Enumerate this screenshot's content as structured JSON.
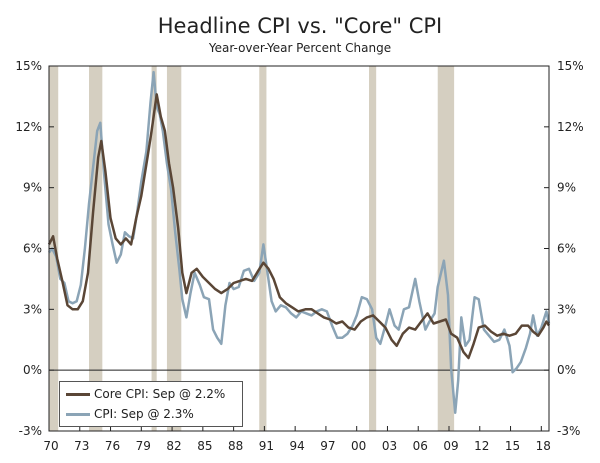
{
  "chart_data": {
    "type": "line",
    "title": "Headline CPI vs. \"Core\" CPI",
    "subtitle": "Year-over-Year Percent Change",
    "xlim": [
      1970,
      2018.75
    ],
    "ylim": [
      -3,
      15
    ],
    "y_ticks": [
      -3,
      0,
      3,
      6,
      9,
      12,
      15
    ],
    "y_tick_labels": [
      "-3%",
      "0%",
      "3%",
      "6%",
      "9%",
      "12%",
      "15%"
    ],
    "x_ticks": [
      1970,
      1973,
      1976,
      1979,
      1982,
      1985,
      1988,
      1991,
      1994,
      1997,
      2000,
      2003,
      2006,
      2009,
      2012,
      2015,
      2018
    ],
    "x_tick_labels": [
      "70",
      "73",
      "76",
      "79",
      "82",
      "85",
      "88",
      "91",
      "94",
      "97",
      "00",
      "03",
      "06",
      "09",
      "12",
      "15",
      "18"
    ],
    "recessions": [
      [
        1970.0,
        1970.9
      ],
      [
        1973.9,
        1975.2
      ],
      [
        1980.0,
        1980.5
      ],
      [
        1981.5,
        1982.9
      ],
      [
        1990.5,
        1991.2
      ],
      [
        2001.2,
        2001.9
      ],
      [
        2007.9,
        2009.5
      ]
    ],
    "legend_position": "bottom-left",
    "series": [
      {
        "name": "Core CPI",
        "legend_label": "Core CPI: Sep @ 2.2%",
        "color": "#5a4636",
        "points": [
          [
            1970.0,
            6.2
          ],
          [
            1970.4,
            6.6
          ],
          [
            1970.8,
            5.5
          ],
          [
            1971.3,
            4.4
          ],
          [
            1971.8,
            3.2
          ],
          [
            1972.3,
            3.0
          ],
          [
            1972.8,
            3.0
          ],
          [
            1973.3,
            3.4
          ],
          [
            1973.8,
            4.8
          ],
          [
            1974.3,
            7.8
          ],
          [
            1974.8,
            10.5
          ],
          [
            1975.1,
            11.3
          ],
          [
            1975.5,
            9.8
          ],
          [
            1976.0,
            7.5
          ],
          [
            1976.5,
            6.5
          ],
          [
            1977.0,
            6.2
          ],
          [
            1977.5,
            6.5
          ],
          [
            1978.0,
            6.2
          ],
          [
            1978.5,
            7.5
          ],
          [
            1979.0,
            8.6
          ],
          [
            1979.6,
            10.5
          ],
          [
            1980.0,
            11.8
          ],
          [
            1980.5,
            13.6
          ],
          [
            1980.9,
            12.5
          ],
          [
            1981.3,
            11.8
          ],
          [
            1981.7,
            10.2
          ],
          [
            1982.1,
            9.0
          ],
          [
            1982.6,
            7.0
          ],
          [
            1983.0,
            4.8
          ],
          [
            1983.4,
            3.8
          ],
          [
            1983.9,
            4.8
          ],
          [
            1984.4,
            5.0
          ],
          [
            1985.0,
            4.6
          ],
          [
            1985.6,
            4.3
          ],
          [
            1986.2,
            4.0
          ],
          [
            1986.8,
            3.8
          ],
          [
            1987.4,
            4.0
          ],
          [
            1988.0,
            4.3
          ],
          [
            1988.6,
            4.4
          ],
          [
            1989.2,
            4.5
          ],
          [
            1989.8,
            4.4
          ],
          [
            1990.4,
            4.9
          ],
          [
            1990.9,
            5.3
          ],
          [
            1991.4,
            5.0
          ],
          [
            1991.9,
            4.5
          ],
          [
            1992.5,
            3.6
          ],
          [
            1993.1,
            3.3
          ],
          [
            1993.7,
            3.1
          ],
          [
            1994.3,
            2.9
          ],
          [
            1995.0,
            3.0
          ],
          [
            1995.6,
            3.0
          ],
          [
            1996.2,
            2.8
          ],
          [
            1996.8,
            2.6
          ],
          [
            1997.4,
            2.5
          ],
          [
            1998.0,
            2.3
          ],
          [
            1998.6,
            2.4
          ],
          [
            1999.2,
            2.1
          ],
          [
            1999.8,
            2.0
          ],
          [
            2000.4,
            2.4
          ],
          [
            2001.0,
            2.6
          ],
          [
            2001.6,
            2.7
          ],
          [
            2002.2,
            2.4
          ],
          [
            2002.8,
            2.1
          ],
          [
            2003.4,
            1.5
          ],
          [
            2003.9,
            1.2
          ],
          [
            2004.5,
            1.8
          ],
          [
            2005.1,
            2.1
          ],
          [
            2005.7,
            2.0
          ],
          [
            2006.3,
            2.4
          ],
          [
            2006.9,
            2.8
          ],
          [
            2007.5,
            2.3
          ],
          [
            2008.1,
            2.4
          ],
          [
            2008.7,
            2.5
          ],
          [
            2009.2,
            1.8
          ],
          [
            2009.8,
            1.6
          ],
          [
            2010.4,
            0.9
          ],
          [
            2010.9,
            0.6
          ],
          [
            2011.4,
            1.3
          ],
          [
            2011.9,
            2.1
          ],
          [
            2012.5,
            2.2
          ],
          [
            2013.1,
            1.9
          ],
          [
            2013.7,
            1.7
          ],
          [
            2014.3,
            1.8
          ],
          [
            2014.9,
            1.7
          ],
          [
            2015.5,
            1.8
          ],
          [
            2016.1,
            2.2
          ],
          [
            2016.7,
            2.2
          ],
          [
            2017.2,
            1.9
          ],
          [
            2017.7,
            1.7
          ],
          [
            2018.2,
            2.1
          ],
          [
            2018.5,
            2.4
          ],
          [
            2018.75,
            2.2
          ]
        ]
      },
      {
        "name": "CPI",
        "legend_label": "CPI: Sep @ 2.3%",
        "color": "#8ba4b6",
        "points": [
          [
            1970.0,
            5.8
          ],
          [
            1970.3,
            6.0
          ],
          [
            1970.7,
            5.6
          ],
          [
            1971.1,
            4.5
          ],
          [
            1971.5,
            4.3
          ],
          [
            1971.9,
            3.4
          ],
          [
            1972.3,
            3.3
          ],
          [
            1972.7,
            3.4
          ],
          [
            1973.1,
            4.2
          ],
          [
            1973.5,
            6.0
          ],
          [
            1973.9,
            8.2
          ],
          [
            1974.3,
            10.0
          ],
          [
            1974.7,
            11.8
          ],
          [
            1975.0,
            12.2
          ],
          [
            1975.4,
            9.5
          ],
          [
            1975.8,
            7.2
          ],
          [
            1976.2,
            6.2
          ],
          [
            1976.6,
            5.3
          ],
          [
            1977.0,
            5.7
          ],
          [
            1977.4,
            6.8
          ],
          [
            1977.8,
            6.6
          ],
          [
            1978.2,
            6.5
          ],
          [
            1978.6,
            7.8
          ],
          [
            1979.0,
            9.3
          ],
          [
            1979.5,
            10.8
          ],
          [
            1979.9,
            13.2
          ],
          [
            1980.2,
            14.7
          ],
          [
            1980.5,
            13.0
          ],
          [
            1980.8,
            12.6
          ],
          [
            1981.1,
            11.8
          ],
          [
            1981.5,
            10.2
          ],
          [
            1981.9,
            8.9
          ],
          [
            1982.3,
            6.8
          ],
          [
            1982.7,
            5.0
          ],
          [
            1983.0,
            3.5
          ],
          [
            1983.4,
            2.6
          ],
          [
            1983.8,
            3.8
          ],
          [
            1984.2,
            4.8
          ],
          [
            1984.7,
            4.2
          ],
          [
            1985.1,
            3.6
          ],
          [
            1985.6,
            3.5
          ],
          [
            1986.0,
            2.0
          ],
          [
            1986.4,
            1.6
          ],
          [
            1986.8,
            1.3
          ],
          [
            1987.2,
            3.2
          ],
          [
            1987.6,
            4.3
          ],
          [
            1988.0,
            4.0
          ],
          [
            1988.5,
            4.1
          ],
          [
            1989.0,
            4.9
          ],
          [
            1989.5,
            5.0
          ],
          [
            1990.0,
            4.4
          ],
          [
            1990.5,
            4.8
          ],
          [
            1990.9,
            6.2
          ],
          [
            1991.3,
            4.8
          ],
          [
            1991.7,
            3.4
          ],
          [
            1992.1,
            2.9
          ],
          [
            1992.6,
            3.2
          ],
          [
            1993.1,
            3.1
          ],
          [
            1993.6,
            2.8
          ],
          [
            1994.1,
            2.6
          ],
          [
            1994.6,
            2.9
          ],
          [
            1995.1,
            2.8
          ],
          [
            1995.6,
            2.7
          ],
          [
            1996.1,
            2.9
          ],
          [
            1996.6,
            3.0
          ],
          [
            1997.1,
            2.9
          ],
          [
            1997.6,
            2.2
          ],
          [
            1998.1,
            1.6
          ],
          [
            1998.6,
            1.6
          ],
          [
            1999.1,
            1.8
          ],
          [
            1999.6,
            2.2
          ],
          [
            2000.0,
            2.7
          ],
          [
            2000.5,
            3.6
          ],
          [
            2001.0,
            3.5
          ],
          [
            2001.5,
            3.0
          ],
          [
            2001.9,
            1.6
          ],
          [
            2002.3,
            1.3
          ],
          [
            2002.8,
            2.2
          ],
          [
            2003.2,
            3.0
          ],
          [
            2003.7,
            2.2
          ],
          [
            2004.1,
            2.0
          ],
          [
            2004.6,
            3.0
          ],
          [
            2005.1,
            3.1
          ],
          [
            2005.7,
            4.5
          ],
          [
            2006.1,
            3.4
          ],
          [
            2006.7,
            2.0
          ],
          [
            2007.1,
            2.4
          ],
          [
            2007.6,
            2.8
          ],
          [
            2007.9,
            4.1
          ],
          [
            2008.5,
            5.4
          ],
          [
            2008.9,
            3.7
          ],
          [
            2009.2,
            0.1
          ],
          [
            2009.6,
            -2.1
          ],
          [
            2009.9,
            -0.5
          ],
          [
            2010.2,
            2.6
          ],
          [
            2010.6,
            1.2
          ],
          [
            2011.0,
            1.5
          ],
          [
            2011.5,
            3.6
          ],
          [
            2011.9,
            3.5
          ],
          [
            2012.4,
            2.0
          ],
          [
            2012.9,
            1.7
          ],
          [
            2013.4,
            1.4
          ],
          [
            2013.9,
            1.5
          ],
          [
            2014.4,
            2.0
          ],
          [
            2014.9,
            1.2
          ],
          [
            2015.2,
            -0.1
          ],
          [
            2015.6,
            0.1
          ],
          [
            2016.0,
            0.4
          ],
          [
            2016.5,
            1.1
          ],
          [
            2016.9,
            1.8
          ],
          [
            2017.2,
            2.7
          ],
          [
            2017.6,
            1.7
          ],
          [
            2018.0,
            2.1
          ],
          [
            2018.5,
            2.9
          ],
          [
            2018.75,
            2.3
          ]
        ]
      }
    ]
  }
}
